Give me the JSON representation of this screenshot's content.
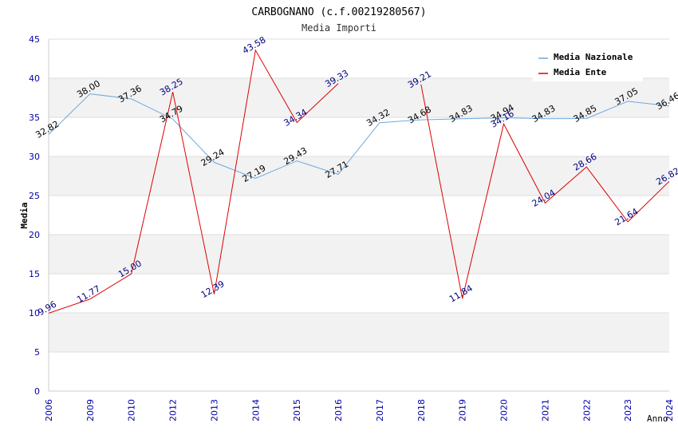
{
  "chart_data": {
    "type": "line",
    "title": "CARBOGNANO (c.f.00219280567)",
    "subtitle": "Media Importi",
    "xlabel": "Anno",
    "ylabel": "Media",
    "ylim": [
      0,
      45
    ],
    "y_ticks": [
      "0",
      "5",
      "10",
      "15",
      "20",
      "25",
      "30",
      "35",
      "40",
      "45"
    ],
    "categories": [
      "2006",
      "2009",
      "2010",
      "2012",
      "2013",
      "2014",
      "2015",
      "2016",
      "2017",
      "2018",
      "2019",
      "2020",
      "2021",
      "2022",
      "2023",
      "2024"
    ],
    "grid": true,
    "legend_position": "top-right",
    "series": [
      {
        "name": "Media Nazionale",
        "color": "#6fa8dc",
        "label_color": "#000000",
        "values": [
          32.82,
          38.0,
          37.36,
          34.79,
          29.24,
          27.19,
          29.43,
          27.71,
          34.32,
          34.68,
          34.83,
          34.94,
          34.83,
          34.85,
          37.05,
          36.46
        ],
        "labels": [
          "32.82",
          "38.00",
          "37.36",
          "34.79",
          "29.24",
          "27.19",
          "29.43",
          "27.71",
          "34.32",
          "34.68",
          "34.83",
          "34.94",
          "34.83",
          "34.85",
          "37.05",
          "36.46"
        ]
      },
      {
        "name": "Media Ente",
        "color": "#dd0000",
        "label_color": "#000080",
        "values": [
          9.96,
          11.77,
          15.0,
          38.25,
          12.39,
          43.58,
          34.34,
          39.33,
          null,
          39.21,
          11.84,
          34.16,
          24.04,
          28.66,
          21.64,
          26.82
        ],
        "labels": [
          "9.96",
          "11.77",
          "15.00",
          "38.25",
          "12.39",
          "43.58",
          "34.34",
          "39.33",
          "",
          "39.21",
          "11.84",
          "34.16",
          "24.04",
          "28.66",
          "21.64",
          "26.82"
        ]
      }
    ]
  }
}
